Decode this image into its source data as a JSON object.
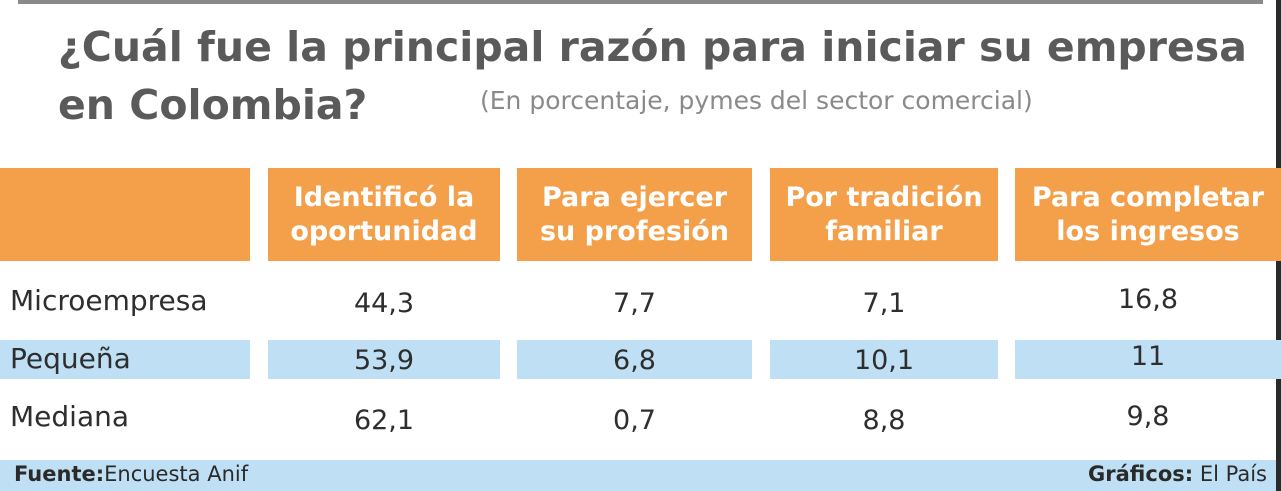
{
  "chart_data": {
    "type": "table",
    "title": "¿Cuál fue la principal razón para iniciar su empresa en Colombia?",
    "subtitle": "(En porcentaje, pymes del sector comercial)",
    "columns": [
      "Identificó la oportunidad",
      "Para ejercer su profesión",
      "Por tradición familiar",
      "Para completar los ingresos"
    ],
    "columns_lines": [
      [
        "Identificó la",
        "oportunidad"
      ],
      [
        "Para ejercer",
        "su profesión"
      ],
      [
        "Por tradición",
        "familiar"
      ],
      [
        "Para completar",
        "los ingresos"
      ]
    ],
    "rows": [
      {
        "label": "Microempresa",
        "values": [
          "44,3",
          "7,7",
          "7,1",
          "16,8"
        ]
      },
      {
        "label": "Pequeña",
        "values": [
          "53,9",
          "6,8",
          "10,1",
          "11"
        ]
      },
      {
        "label": "Mediana",
        "values": [
          "62,1",
          "0,7",
          "8,8",
          "9,8"
        ]
      }
    ]
  },
  "title_lines": [
    "¿Cuál fue la principal razón para iniciar su empresa",
    "en Colombia?"
  ],
  "footer": {
    "source_label": "Fuente:",
    "source_text": "Encuesta Anif",
    "credit_label": "Gráficos:",
    "credit_text": "El País"
  },
  "colors": {
    "header_bg": "#f4a04a",
    "stripe_bg": "#bfe0f4",
    "title": "#5a5a5a"
  }
}
